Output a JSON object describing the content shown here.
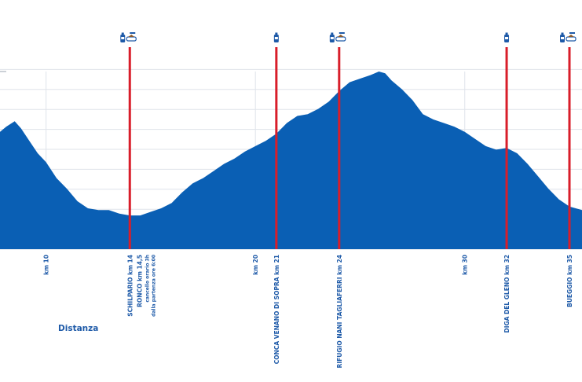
{
  "chart_data": {
    "type": "area",
    "xlabel": "Distanza",
    "x_unit": "km",
    "xlim": [
      7.8,
      35.6
    ],
    "area_color": "#0a5fb4",
    "marker_color": "#d81e2a",
    "label_color": "#1e5aa8",
    "grid": true,
    "profile": [
      [
        7.8,
        0.66
      ],
      [
        8.1,
        0.69
      ],
      [
        8.5,
        0.72
      ],
      [
        8.8,
        0.68
      ],
      [
        9.2,
        0.61
      ],
      [
        9.6,
        0.54
      ],
      [
        10.0,
        0.49
      ],
      [
        10.5,
        0.4
      ],
      [
        11.0,
        0.34
      ],
      [
        11.5,
        0.27
      ],
      [
        12.0,
        0.23
      ],
      [
        12.5,
        0.22
      ],
      [
        13.0,
        0.22
      ],
      [
        13.5,
        0.2
      ],
      [
        14.0,
        0.19
      ],
      [
        14.5,
        0.19
      ],
      [
        15.0,
        0.21
      ],
      [
        15.5,
        0.23
      ],
      [
        16.0,
        0.26
      ],
      [
        16.5,
        0.32
      ],
      [
        17.0,
        0.37
      ],
      [
        17.5,
        0.4
      ],
      [
        18.0,
        0.44
      ],
      [
        18.5,
        0.48
      ],
      [
        19.0,
        0.51
      ],
      [
        19.5,
        0.55
      ],
      [
        20.0,
        0.58
      ],
      [
        20.5,
        0.61
      ],
      [
        21.0,
        0.65
      ],
      [
        21.5,
        0.71
      ],
      [
        22.0,
        0.75
      ],
      [
        22.5,
        0.76
      ],
      [
        23.0,
        0.79
      ],
      [
        23.5,
        0.83
      ],
      [
        24.0,
        0.89
      ],
      [
        24.5,
        0.94
      ],
      [
        25.0,
        0.96
      ],
      [
        25.5,
        0.98
      ],
      [
        25.9,
        1.0
      ],
      [
        26.2,
        0.99
      ],
      [
        26.5,
        0.95
      ],
      [
        27.0,
        0.9
      ],
      [
        27.5,
        0.84
      ],
      [
        28.0,
        0.76
      ],
      [
        28.5,
        0.73
      ],
      [
        29.0,
        0.71
      ],
      [
        29.5,
        0.69
      ],
      [
        30.0,
        0.66
      ],
      [
        30.5,
        0.62
      ],
      [
        31.0,
        0.58
      ],
      [
        31.5,
        0.56
      ],
      [
        32.0,
        0.57
      ],
      [
        32.5,
        0.54
      ],
      [
        33.0,
        0.48
      ],
      [
        33.5,
        0.41
      ],
      [
        34.0,
        0.34
      ],
      [
        34.5,
        0.28
      ],
      [
        35.0,
        0.24
      ],
      [
        35.6,
        0.22
      ]
    ],
    "tick_labels": [
      {
        "km": 10,
        "label": "km 10"
      },
      {
        "km": 20,
        "label": "km 20"
      },
      {
        "km": 30,
        "label": "km 30"
      }
    ],
    "stations": [
      {
        "km": 14,
        "label": "SCHILPARIO  km 14",
        "icons": [
          "water-icon",
          "food-icon"
        ],
        "notes": []
      },
      {
        "km": 14.5,
        "label": "RONCO  km 14,5",
        "icons": [],
        "notes": [
          "cancello orario 3h",
          "dalla partenza ore 6:00"
        ],
        "marker": false
      },
      {
        "km": 21,
        "label": "CONCA VENANO DI SOPRA  km 21",
        "icons": [
          "water-icon"
        ],
        "notes": []
      },
      {
        "km": 24,
        "label": "RIFUGIO NANI TAGLIAFERRI  km 24",
        "icons": [
          "water-icon",
          "food-icon"
        ],
        "notes": []
      },
      {
        "km": 32,
        "label": "DIGA DEL GLENO  km 32",
        "icons": [
          "water-icon"
        ],
        "notes": []
      },
      {
        "km": 35,
        "label": "BUEGGIO  km 35",
        "icons": [
          "water-icon",
          "food-icon"
        ],
        "notes": []
      }
    ]
  }
}
